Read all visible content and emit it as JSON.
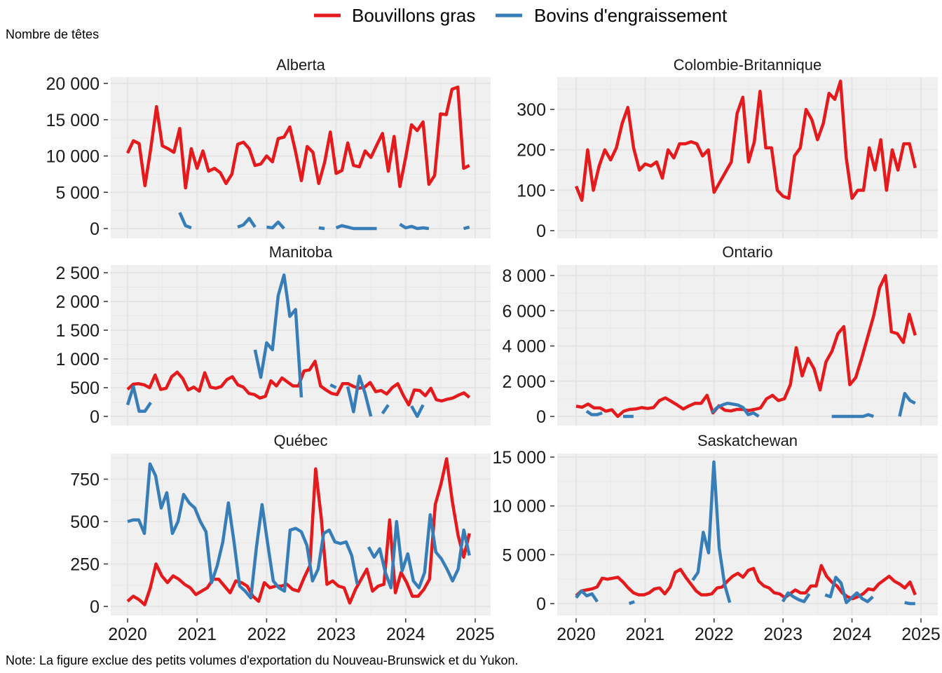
{
  "chart_data": {
    "type": "line",
    "legend": {
      "position": "top",
      "entries": [
        {
          "name": "Bouvillons gras",
          "color": "#E41A1C"
        },
        {
          "name": "Bovins d'engraissement",
          "color": "#377EB8"
        }
      ]
    },
    "ylabel": "Nombre de têtes",
    "note": "Note: La figure exclue des petits volumes d'exportation du Nouveau-Brunswick et du Yukon.",
    "x_start": "2020-01",
    "x_frequency": "monthly",
    "xlim": [
      2020,
      2025
    ],
    "x_ticks": [
      "2020",
      "2021",
      "2022",
      "2023",
      "2024",
      "2025"
    ],
    "grid": true,
    "panels": [
      {
        "title": "Alberta",
        "ylim": [
          0,
          20000
        ],
        "y_ticks": [
          0,
          5000,
          10000,
          15000,
          20000
        ],
        "y_tick_labels": [
          "0",
          "5 000",
          "10 000",
          "15 000",
          "20 000"
        ],
        "series": [
          {
            "name": "Bouvillons gras",
            "values": [
              10400,
              12100,
              11700,
              5900,
              11000,
              16800,
              11400,
              11000,
              10500,
              13800,
              5600,
              11000,
              8300,
              10700,
              7900,
              8300,
              7700,
              6200,
              7500,
              11600,
              11900,
              11000,
              8700,
              8900,
              10000,
              9200,
              12400,
              12600,
              14000,
              10600,
              6600,
              11300,
              10500,
              6200,
              9100,
              13300,
              7600,
              8000,
              11800,
              8700,
              8500,
              10700,
              9800,
              11500,
              13100,
              7900,
              12700,
              5800,
              9800,
              14300,
              13500,
              14700,
              6100,
              7300,
              15800,
              15700,
              19200,
              19500,
              8300,
              8700
            ]
          },
          {
            "name": "Bovins d'engraissement",
            "values": [
              null,
              null,
              null,
              null,
              null,
              null,
              null,
              null,
              null,
              2200,
              400,
              100,
              null,
              null,
              null,
              null,
              null,
              0,
              null,
              200,
              500,
              1400,
              200,
              null,
              200,
              100,
              900,
              0,
              null,
              null,
              null,
              null,
              null,
              100,
              0,
              null,
              100,
              400,
              200,
              0,
              0,
              0,
              0,
              0,
              null,
              null,
              null,
              600,
              100,
              300,
              0,
              100,
              0,
              null,
              null,
              null,
              null,
              null,
              0,
              200
            ]
          }
        ]
      },
      {
        "title": "Colombie-Britannique",
        "ylim": [
          0,
          380
        ],
        "y_ticks": [
          0,
          100,
          200,
          300
        ],
        "y_tick_labels": [
          "0",
          "100",
          "200",
          "300"
        ],
        "series": [
          {
            "name": "Bouvillons gras",
            "values": [
              110,
              75,
              200,
              100,
              160,
              200,
              175,
              205,
              265,
              305,
              205,
              150,
              165,
              160,
              170,
              130,
              200,
              180,
              215,
              215,
              220,
              215,
              185,
              200,
              95,
              120,
              145,
              170,
              290,
              330,
              170,
              220,
              345,
              205,
              205,
              100,
              85,
              80,
              185,
              205,
              300,
              275,
              225,
              265,
              340,
              325,
              370,
              180,
              80,
              100,
              100,
              205,
              150,
              225,
              100,
              200,
              150,
              215,
              215,
              155
            ]
          },
          {
            "name": "Bovins d'engraissement",
            "values": [
              null,
              null,
              null,
              null,
              null,
              null,
              null,
              null,
              null,
              null,
              null,
              null,
              null,
              null,
              null,
              null,
              null,
              null,
              null,
              null,
              null,
              null,
              null,
              null,
              null,
              null,
              null,
              null,
              null,
              null,
              null,
              null,
              null,
              null,
              null,
              null,
              null,
              null,
              null,
              null,
              null,
              null,
              null,
              null,
              null,
              null,
              null,
              null,
              null,
              null,
              null,
              null,
              null,
              null,
              null,
              null,
              null,
              null,
              null,
              null
            ]
          }
        ]
      },
      {
        "title": "Manitoba",
        "ylim": [
          0,
          2500
        ],
        "y_ticks": [
          0,
          500,
          1000,
          1500,
          2000,
          2500
        ],
        "y_tick_labels": [
          "0",
          "500",
          "1 000",
          "1 500",
          "2 000",
          "2 500"
        ],
        "series": [
          {
            "name": "Bouvillons gras",
            "values": [
              470,
              560,
              570,
              550,
              500,
              720,
              470,
              490,
              690,
              770,
              660,
              460,
              510,
              440,
              760,
              510,
              490,
              520,
              640,
              690,
              550,
              510,
              400,
              380,
              320,
              350,
              620,
              530,
              670,
              600,
              530,
              530,
              790,
              810,
              960,
              530,
              460,
              400,
              380,
              570,
              570,
              520,
              490,
              510,
              590,
              430,
              450,
              390,
              500,
              570,
              370,
              200,
              460,
              450,
              360,
              490,
              290,
              270,
              300,
              320,
              370,
              410,
              330
            ]
          },
          {
            "name": "Bovins d'engraissement",
            "values": [
              200,
              520,
              90,
              90,
              240,
              null,
              null,
              null,
              null,
              null,
              null,
              null,
              null,
              null,
              null,
              null,
              null,
              null,
              null,
              null,
              null,
              null,
              1160,
              680,
              1280,
              1160,
              2100,
              2460,
              1740,
              1860,
              330,
              null,
              null,
              null,
              null,
              550,
              500,
              null,
              520,
              80,
              700,
              400,
              0,
              null,
              50,
              200,
              null,
              null,
              null,
              180,
              0,
              200,
              null,
              null,
              null,
              null,
              null,
              null,
              null,
              null
            ]
          }
        ]
      },
      {
        "title": "Ontario",
        "ylim": [
          0,
          8000
        ],
        "y_ticks": [
          0,
          2000,
          4000,
          6000,
          8000
        ],
        "y_tick_labels": [
          "0",
          "2 000",
          "4 000",
          "6 000",
          "8 000"
        ],
        "series": [
          {
            "name": "Bouvillons gras",
            "values": [
              580,
              520,
              700,
              480,
              480,
              300,
              380,
              0,
              300,
              400,
              420,
              500,
              450,
              500,
              900,
              1050,
              850,
              650,
              420,
              600,
              750,
              740,
              1200,
              200,
              600,
              350,
              310,
              400,
              400,
              330,
              400,
              480,
              1000,
              1200,
              900,
              1000,
              1800,
              3900,
              2300,
              3300,
              2700,
              1500,
              3100,
              3700,
              4700,
              5100,
              1800,
              2200,
              3300,
              4500,
              5700,
              7300,
              8000,
              4800,
              4700,
              4200,
              5800,
              4600
            ]
          },
          {
            "name": "Bovins d'engraissement",
            "values": [
              null,
              null,
              300,
              100,
              100,
              200,
              null,
              null,
              null,
              0,
              0,
              0,
              null,
              null,
              null,
              null,
              null,
              null,
              null,
              null,
              null,
              null,
              null,
              0,
              null,
              null,
              200,
              500,
              650,
              750,
              700,
              650,
              500,
              100,
              200,
              0,
              null,
              null,
              null,
              null,
              null,
              null,
              null,
              null,
              200,
              null,
              null,
              100,
              null,
              0,
              0,
              0,
              0,
              0,
              0,
              0,
              100,
              0,
              null,
              null,
              null,
              null,
              0,
              1300,
              900,
              750
            ]
          }
        ]
      },
      {
        "title": "Québec",
        "ylim": [
          0,
          880
        ],
        "y_ticks": [
          0,
          250,
          500,
          750
        ],
        "y_tick_labels": [
          "0",
          "250",
          "500",
          "750"
        ],
        "series": [
          {
            "name": "Bouvillons gras",
            "values": [
              30,
              60,
              40,
              10,
              110,
              250,
              180,
              140,
              180,
              160,
              130,
              110,
              70,
              90,
              110,
              160,
              160,
              120,
              80,
              150,
              140,
              120,
              60,
              30,
              140,
              110,
              120,
              120,
              130,
              100,
              90,
              170,
              240,
              810,
              520,
              130,
              150,
              120,
              110,
              20,
              100,
              160,
              220,
              90,
              120,
              130,
              510,
              80,
              200,
              140,
              60,
              60,
              100,
              160,
              600,
              720,
              870,
              620,
              420,
              290,
              430
            ]
          },
          {
            "name": "Bovins d'engraissement",
            "values": [
              500,
              510,
              510,
              430,
              840,
              770,
              580,
              670,
              430,
              500,
              660,
              610,
              580,
              500,
              440,
              140,
              240,
              380,
              610,
              380,
              120,
              90,
              50,
              350,
              600,
              370,
              150,
              110,
              90,
              450,
              460,
              440,
              360,
              150,
              220,
              430,
              450,
              380,
              370,
              380,
              300,
              130,
              null,
              350,
              290,
              340,
              200,
              110,
              500,
              210,
              310,
              150,
              110,
              200,
              540,
              320,
              280,
              220,
              150,
              220,
              450,
              300
            ]
          }
        ]
      },
      {
        "title": "Saskatchewan",
        "ylim": [
          0,
          15000
        ],
        "y_ticks": [
          0,
          5000,
          10000,
          15000
        ],
        "y_tick_labels": [
          "0",
          "5 000",
          "10 000",
          "15 000"
        ],
        "series": [
          {
            "name": "Bouvillons gras",
            "values": [
              800,
              1300,
              1400,
              1500,
              1700,
              2600,
              2500,
              2600,
              2700,
              2200,
              1600,
              1100,
              900,
              900,
              1100,
              1500,
              1600,
              1000,
              1700,
              3200,
              3500,
              2700,
              2000,
              1300,
              900,
              900,
              1000,
              1600,
              1700,
              2300,
              2800,
              3100,
              2700,
              3400,
              3600,
              2300,
              1800,
              1600,
              1100,
              1000,
              600,
              1000,
              1400,
              1100,
              1100,
              1800,
              1800,
              3900,
              2800,
              2200,
              1800,
              1100,
              700,
              500,
              700,
              1000,
              1500,
              1400,
              2000,
              2400,
              2800,
              2300,
              2000,
              1600,
              2200,
              900
            ]
          },
          {
            "name": "Bovins d'engraissement",
            "values": [
              600,
              1300,
              800,
              1000,
              200,
              null,
              null,
              null,
              null,
              null,
              0,
              200,
              null,
              null,
              null,
              null,
              null,
              null,
              null,
              null,
              null,
              null,
              2400,
              3200,
              7300,
              5200,
              14500,
              5700,
              2000,
              100,
              null,
              null,
              null,
              null,
              null,
              null,
              null,
              null,
              null,
              200,
              1100,
              700,
              400,
              200,
              1000,
              null,
              null,
              900,
              700,
              2700,
              2100,
              100,
              600,
              1100,
              500,
              200,
              700,
              null,
              null,
              null,
              null,
              null,
              100,
              0,
              0
            ]
          }
        ]
      }
    ]
  }
}
